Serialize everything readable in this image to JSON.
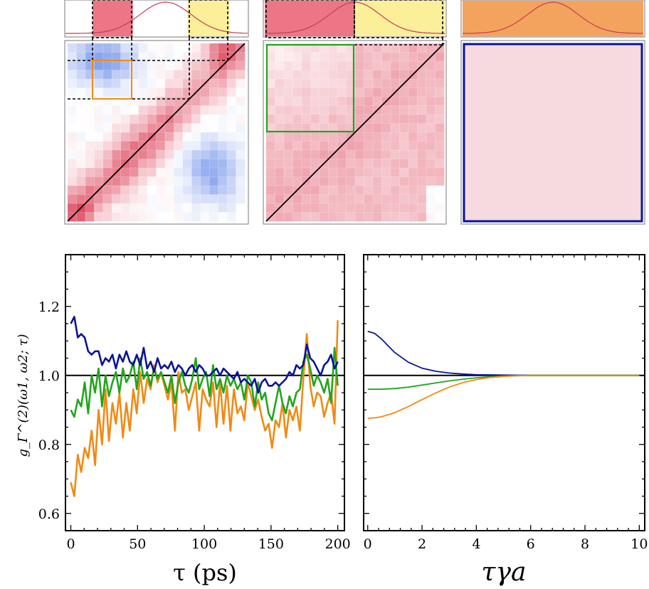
{
  "colors": {
    "red_region": "#ec7686",
    "yellow_region": "#fbef9a",
    "orange_region": "#f4a35e",
    "spectrum_line": "#c63a57",
    "pink_fill": "#f5dadf",
    "orange_series": "#f08a14",
    "green_series": "#22a51c",
    "blue_series": "#0a1496",
    "reference": "#000000"
  },
  "chart_data": [
    {
      "type": "heatmap",
      "id": "map-left",
      "description_of_panel": "frequency-resolved correlation map with spectrum, mixed blue/red",
      "rows": 20,
      "cols": 20,
      "spectrum": {
        "center": 0.55,
        "width": 0.14,
        "regions": [
          {
            "from": 0.15,
            "to": 0.37,
            "color": "red"
          },
          {
            "from": 0.67,
            "to": 0.9,
            "color": "yellow"
          }
        ]
      },
      "highlight_box_color": "orange"
    },
    {
      "type": "heatmap",
      "id": "map-middle",
      "rows": 20,
      "cols": 20,
      "spectrum": {
        "center": 0.5,
        "width": 0.14,
        "regions": [
          {
            "from": 0.0,
            "to": 0.5,
            "color": "red"
          },
          {
            "from": 0.5,
            "to": 1.0,
            "color": "yellow"
          }
        ]
      },
      "highlight_box_color": "green"
    },
    {
      "type": "heatmap",
      "id": "map-right",
      "rows": 1,
      "cols": 1,
      "spectrum": {
        "center": 0.5,
        "width": 0.14,
        "regions": [
          {
            "from": 0.0,
            "to": 1.0,
            "color": "orange"
          }
        ]
      },
      "highlight_box_color": "blue"
    },
    {
      "type": "line",
      "id": "plot-left",
      "xlabel": "τ (ps)",
      "ylabel": "g_Γ^(2)(ω1, ω2; τ)",
      "xlim": [
        -4,
        205
      ],
      "ylim": [
        0.55,
        1.35
      ],
      "xticks": [
        0,
        50,
        100,
        150,
        200
      ],
      "yticks": [
        0.6,
        0.8,
        1.0,
        1.2
      ],
      "xtick_labels": [
        "0",
        "50",
        "100",
        "150",
        "200"
      ],
      "ytick_labels": [
        "0.6",
        "0.8",
        "1.0",
        "1.2"
      ],
      "reference_line": 1.0,
      "series": [
        {
          "name": "orange",
          "color": "orange",
          "x": [
            0,
            2.6,
            5.2,
            7.8,
            10.4,
            13,
            15.6,
            18.2,
            20.8,
            23.4,
            26,
            28.6,
            31.2,
            33.8,
            36.4,
            39,
            41.6,
            44.2,
            46.8,
            49.4,
            52,
            54.6,
            57.2,
            59.8,
            62.4,
            65,
            67.6,
            70.2,
            72.8,
            75.4,
            78,
            80.6,
            83.2,
            85.8,
            88.4,
            91,
            93.6,
            96.2,
            98.8,
            101.4,
            104,
            106.6,
            109.2,
            111.8,
            114.4,
            117,
            119.6,
            122.2,
            124.8,
            127.4,
            130,
            132.6,
            135.2,
            137.8,
            140.4,
            143,
            145.6,
            148.2,
            150.8,
            153.4,
            156,
            158.6,
            161.2,
            163.8,
            166.4,
            169,
            171.6,
            174.2,
            176.8,
            179.4,
            182,
            184.6,
            187.2,
            189.8,
            192.4,
            195,
            197.6,
            200
          ],
          "values": [
            0.69,
            0.65,
            0.77,
            0.72,
            0.79,
            0.76,
            0.84,
            0.74,
            0.9,
            0.8,
            0.96,
            0.81,
            0.92,
            0.86,
            0.95,
            0.82,
            0.92,
            0.84,
            0.96,
            0.89,
            1.01,
            0.92,
            0.99,
            0.96,
            1.03,
            0.98,
            1.01,
            0.97,
            0.93,
            0.98,
            0.84,
            1.01,
            0.95,
            0.96,
            0.9,
            0.94,
            0.98,
            0.84,
            0.96,
            0.93,
            0.91,
            0.98,
            0.85,
            0.98,
            0.86,
            0.97,
            0.84,
            0.96,
            0.89,
            0.91,
            0.87,
            0.98,
            0.94,
            0.9,
            0.93,
            0.88,
            0.84,
            0.86,
            0.79,
            0.87,
            0.85,
            0.92,
            0.82,
            0.9,
            0.87,
            0.91,
            0.84,
            0.99,
            1.12,
            0.97,
            0.91,
            0.95,
            0.94,
            0.88,
            0.92,
            0.95,
            0.86,
            1.16
          ]
        },
        {
          "name": "green",
          "color": "green",
          "x": [
            0,
            2.6,
            5.2,
            7.8,
            10.4,
            13,
            15.6,
            18.2,
            20.8,
            23.4,
            26,
            28.6,
            31.2,
            33.8,
            36.4,
            39,
            41.6,
            44.2,
            46.8,
            49.4,
            52,
            54.6,
            57.2,
            59.8,
            62.4,
            65,
            67.6,
            70.2,
            72.8,
            75.4,
            78,
            80.6,
            83.2,
            85.8,
            88.4,
            91,
            93.6,
            96.2,
            98.8,
            101.4,
            104,
            106.6,
            109.2,
            111.8,
            114.4,
            117,
            119.6,
            122.2,
            124.8,
            127.4,
            130,
            132.6,
            135.2,
            137.8,
            140.4,
            143,
            145.6,
            148.2,
            150.8,
            153.4,
            156,
            158.6,
            161.2,
            163.8,
            166.4,
            169,
            171.6,
            174.2,
            176.8,
            179.4,
            182,
            184.6,
            187.2,
            189.8,
            192.4,
            195,
            197.6,
            200
          ],
          "values": [
            0.9,
            0.88,
            0.93,
            0.91,
            0.98,
            0.89,
            1.0,
            0.95,
            1.02,
            0.91,
            1.0,
            0.94,
            0.98,
            1.01,
            0.95,
            1.02,
            0.98,
            1.0,
            1.04,
            0.96,
            1.05,
            0.99,
            1.01,
            0.97,
            1.02,
            0.99,
            1.01,
            0.98,
            0.95,
            1.0,
            0.92,
            0.98,
            1.01,
            0.97,
            0.95,
            0.99,
            1.05,
            0.96,
            0.99,
            1.01,
            0.94,
            1.03,
            0.96,
            0.99,
            0.95,
            1.0,
            0.97,
            0.99,
            0.96,
            0.98,
            0.93,
            1.0,
            0.98,
            0.91,
            0.98,
            0.93,
            0.95,
            0.89,
            0.87,
            0.92,
            0.97,
            0.92,
            0.89,
            0.94,
            0.91,
            0.95,
            0.96,
            1.04,
            1.06,
            1.02,
            0.97,
            1.0,
            0.98,
            0.95,
            0.99,
            0.92,
            1.08,
            0.97
          ]
        },
        {
          "name": "blue",
          "color": "blue",
          "x": [
            0,
            2.6,
            5.2,
            7.8,
            10.4,
            13,
            15.6,
            18.2,
            20.8,
            23.4,
            26,
            28.6,
            31.2,
            33.8,
            36.4,
            39,
            41.6,
            44.2,
            46.8,
            49.4,
            52,
            54.6,
            57.2,
            59.8,
            62.4,
            65,
            67.6,
            70.2,
            72.8,
            75.4,
            78,
            80.6,
            83.2,
            85.8,
            88.4,
            91,
            93.6,
            96.2,
            98.8,
            101.4,
            104,
            106.6,
            109.2,
            111.8,
            114.4,
            117,
            119.6,
            122.2,
            124.8,
            127.4,
            130,
            132.6,
            135.2,
            137.8,
            140.4,
            143,
            145.6,
            148.2,
            150.8,
            153.4,
            156,
            158.6,
            161.2,
            163.8,
            166.4,
            169,
            171.6,
            174.2,
            176.8,
            179.4,
            182,
            184.6,
            187.2,
            189.8,
            192.4,
            195,
            197.6,
            200
          ],
          "values": [
            1.15,
            1.17,
            1.11,
            1.12,
            1.11,
            1.07,
            1.06,
            1.07,
            1.07,
            1.03,
            1.05,
            1.04,
            1.06,
            1.02,
            1.06,
            1.04,
            1.07,
            1.04,
            1.03,
            1.06,
            1.03,
            1.08,
            1.02,
            1.04,
            1.01,
            1.05,
            1.02,
            1.03,
            1.02,
            1.04,
            1.01,
            1.03,
            1.02,
            1.0,
            1.02,
            1.03,
            1.01,
            1.03,
            1.02,
            1.0,
            1.0,
            1.01,
            1.02,
            1.0,
            1.02,
            1.01,
            1.0,
            0.99,
            1.01,
            0.98,
            0.99,
            0.98,
            0.97,
            0.99,
            0.95,
            0.98,
            0.99,
            0.97,
            0.97,
            0.98,
            0.97,
            0.98,
            0.99,
            1.01,
            1.0,
            1.03,
            1.02,
            1.03,
            1.09,
            1.05,
            1.04,
            1.02,
            1.0,
            1.03,
            1.04,
            1.06,
            1.02,
            1.04
          ]
        }
      ]
    },
    {
      "type": "line",
      "id": "plot-right",
      "xlabel": "τγa",
      "xlim": [
        -0.15,
        10.2
      ],
      "ylim": [
        0.55,
        1.35
      ],
      "xticks": [
        0,
        2,
        4,
        6,
        8,
        10
      ],
      "yticks": [
        0.6,
        0.8,
        1.0,
        1.2
      ],
      "xtick_labels": [
        "0",
        "2",
        "4",
        "6",
        "8",
        "10"
      ],
      "reference_line": 1.0,
      "series": [
        {
          "name": "blue",
          "color": "blue",
          "x": [
            0,
            0.25,
            0.5,
            0.75,
            1,
            1.5,
            2,
            2.5,
            3,
            3.5,
            4,
            5,
            6,
            7,
            8,
            9,
            10
          ],
          "values": [
            1.128,
            1.122,
            1.106,
            1.086,
            1.066,
            1.038,
            1.021,
            1.012,
            1.007,
            1.004,
            1.002,
            1.001,
            1.0,
            1.0,
            1.0,
            1.0,
            1.0
          ]
        },
        {
          "name": "green",
          "color": "green",
          "x": [
            0,
            0.5,
            1,
            1.5,
            2,
            2.5,
            3,
            3.5,
            4,
            4.5,
            5,
            6,
            7,
            8,
            9,
            10
          ],
          "values": [
            0.96,
            0.96,
            0.962,
            0.966,
            0.972,
            0.978,
            0.984,
            0.989,
            0.993,
            0.996,
            0.998,
            1.0,
            1.0,
            1.0,
            1.0,
            1.0
          ]
        },
        {
          "name": "orange",
          "color": "orange",
          "x": [
            0,
            0.25,
            0.5,
            1,
            1.5,
            2,
            2.5,
            3,
            3.5,
            4,
            4.5,
            5,
            5.5,
            6,
            7,
            8,
            9,
            10
          ],
          "values": [
            0.876,
            0.877,
            0.88,
            0.892,
            0.91,
            0.93,
            0.949,
            0.966,
            0.979,
            0.988,
            0.994,
            0.997,
            0.999,
            1.0,
            1.0,
            1.0,
            1.0,
            1.0
          ]
        }
      ]
    }
  ]
}
